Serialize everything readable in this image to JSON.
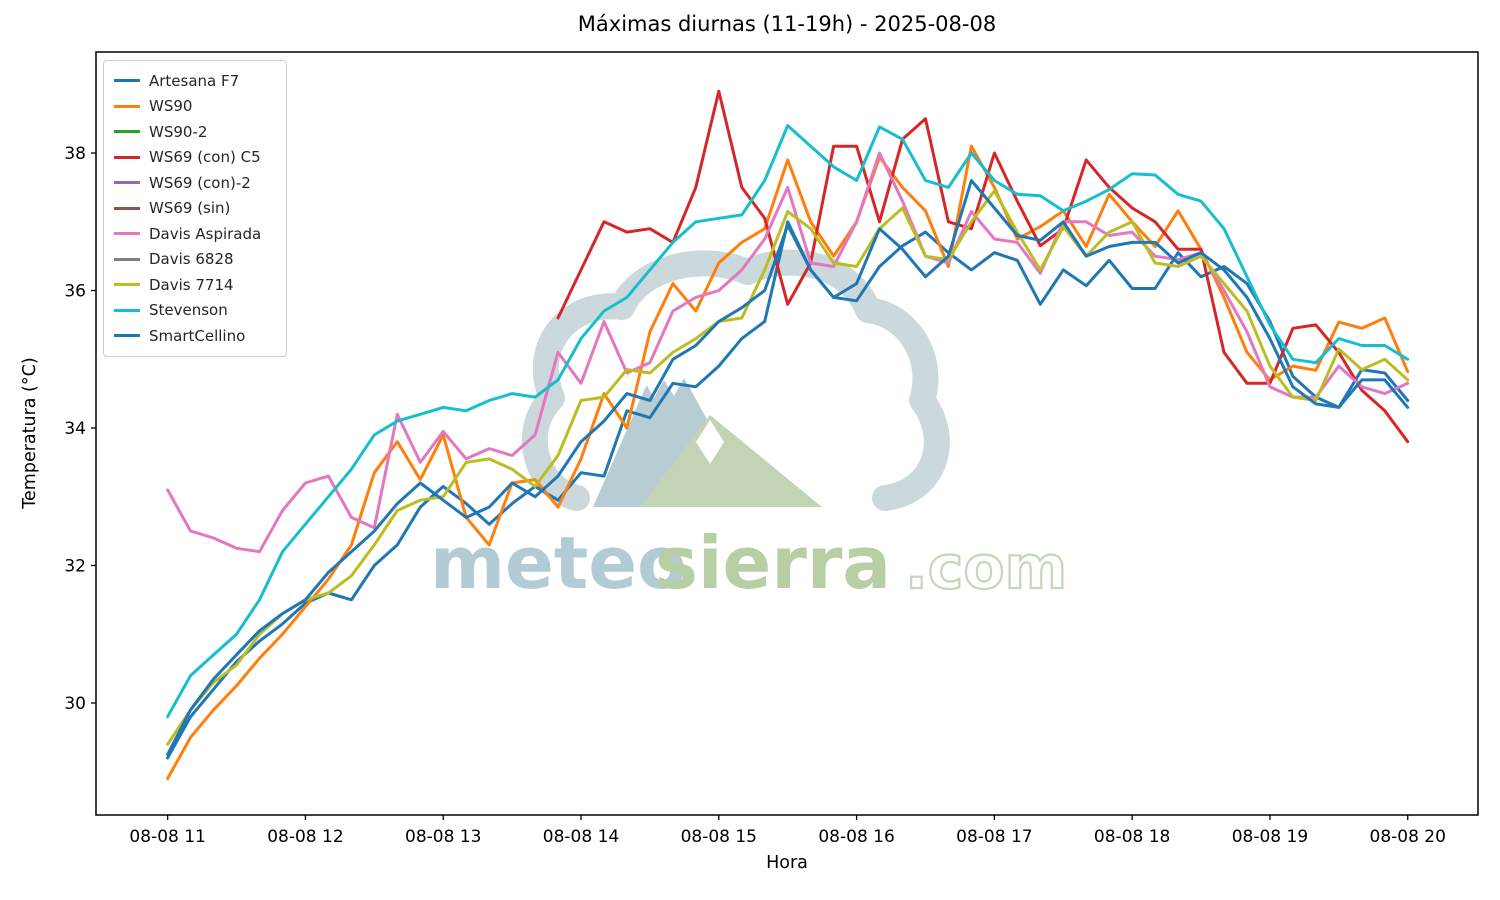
{
  "title": "Máximas diurnas (11-19h) - 2025-08-08",
  "axes": {
    "x_label": "Hora",
    "y_label": "Temperatura (°C)",
    "x_tick_labels": [
      "08-08 11",
      "08-08 12",
      "08-08 13",
      "08-08 14",
      "08-08 15",
      "08-08 16",
      "08-08 17",
      "08-08 18",
      "08-08 19",
      "08-08 20"
    ],
    "x_tick_hours": [
      11,
      12,
      13,
      14,
      15,
      16,
      17,
      18,
      19,
      20
    ],
    "y_tick_labels": [
      "30",
      "32",
      "34",
      "36",
      "38"
    ],
    "y_tick_values": [
      30,
      32,
      34,
      36,
      38
    ]
  },
  "watermark": {
    "text_meteo": "meteo",
    "text_sierra": "sierra",
    "text_com": ".com",
    "color_meteo": "#b3cbd5",
    "color_sierra": "#b8cfa6",
    "color_com": "#c3d6b8",
    "color_cloud": "#ccd9dc",
    "color_mountain_left": "#b7ccd3",
    "color_mountain_right": "#c3d4b4"
  },
  "chart_data": {
    "type": "line",
    "title": "Máximas diurnas (11-19h) - 2025-08-08",
    "xlabel": "Hora",
    "ylabel": "Temperatura (°C)",
    "xlim_hours": [
      10.48,
      20.51
    ],
    "ylim": [
      28.37,
      39.47
    ],
    "grid": false,
    "legend_position": "upper left",
    "x_start_hour": 11.0,
    "x_step_minutes": 10,
    "series": [
      {
        "name": "Artesana F7",
        "color": "#1f77b4",
        "start_hour": 11.0,
        "step_minutes": 10,
        "values": [
          29.2,
          29.8,
          30.2,
          30.6,
          30.9,
          31.15,
          31.45,
          31.6,
          31.5,
          32.0,
          32.3,
          32.85,
          33.15,
          32.9,
          32.6,
          32.9,
          33.15,
          32.95,
          33.35,
          33.3,
          34.25,
          34.15,
          34.65,
          34.6,
          34.9,
          35.3,
          35.55,
          37.0,
          36.3,
          35.9,
          35.85,
          36.35,
          36.65,
          36.85,
          36.55,
          36.3,
          36.55,
          36.44,
          35.8,
          36.3,
          36.07,
          36.44,
          36.03,
          36.03,
          36.55,
          36.2,
          36.35,
          36.1,
          35.55,
          34.75,
          34.45,
          34.3,
          34.85,
          34.8,
          34.4
        ]
      },
      {
        "name": "WS90",
        "color": "#ff7f0e",
        "start_hour": 11.0,
        "step_minutes": 10,
        "values": [
          28.9,
          29.5,
          29.9,
          30.25,
          30.65,
          31.0,
          31.4,
          31.8,
          32.3,
          33.35,
          33.8,
          33.25,
          33.9,
          32.7,
          32.3,
          33.2,
          33.25,
          32.85,
          33.55,
          34.5,
          34.0,
          35.4,
          36.1,
          35.7,
          36.4,
          36.7,
          36.9,
          37.9,
          37.0,
          36.5,
          37.0,
          37.94,
          37.5,
          37.16,
          36.35,
          38.1,
          37.5,
          36.75,
          36.93,
          37.16,
          36.64,
          37.4,
          37.0,
          36.64,
          37.16,
          36.6,
          35.9,
          35.1,
          34.7,
          34.9,
          34.84,
          35.54,
          35.45,
          35.6,
          34.82
        ]
      },
      {
        "name": "WS90-2",
        "color": "#2ca02c",
        "start_hour": 11.0,
        "step_minutes": 10,
        "values": []
      },
      {
        "name": "WS69 (con) C5",
        "color": "#d62728",
        "start_hour": 13.8333,
        "step_minutes": 10,
        "values": [
          35.6,
          36.3,
          37.0,
          36.85,
          36.9,
          36.7,
          37.5,
          38.9,
          37.5,
          37.05,
          35.8,
          36.4,
          38.1,
          38.1,
          37.0,
          38.2,
          38.5,
          37.0,
          36.9,
          38.0,
          37.3,
          36.65,
          36.9,
          37.9,
          37.5,
          37.2,
          37.0,
          36.6,
          36.6,
          35.1,
          34.65,
          34.65,
          35.45,
          35.5,
          35.1,
          34.55,
          34.25,
          33.8
        ]
      },
      {
        "name": "WS69 (con)-2",
        "color": "#9467bd",
        "start_hour": 11.0,
        "step_minutes": 10,
        "values": []
      },
      {
        "name": "WS69 (sin)",
        "color": "#8c564b",
        "start_hour": 11.0,
        "step_minutes": 10,
        "values": []
      },
      {
        "name": "Davis Aspirada",
        "color": "#e377c2",
        "start_hour": 11.0,
        "step_minutes": 10,
        "values": [
          33.1,
          32.5,
          32.4,
          32.25,
          32.2,
          32.8,
          33.2,
          33.3,
          32.7,
          32.55,
          34.2,
          33.5,
          33.95,
          33.55,
          33.7,
          33.6,
          33.9,
          35.1,
          34.65,
          35.55,
          34.8,
          34.95,
          35.7,
          35.9,
          36.0,
          36.3,
          36.75,
          37.5,
          36.4,
          36.35,
          37.0,
          38.0,
          37.3,
          36.5,
          36.4,
          37.15,
          36.75,
          36.7,
          36.25,
          37.0,
          37.0,
          36.8,
          36.85,
          36.5,
          36.45,
          36.55,
          36.0,
          35.4,
          34.6,
          34.45,
          34.45,
          34.9,
          34.6,
          34.5,
          34.65
        ]
      },
      {
        "name": "Davis 6828",
        "color": "#7f7f7f",
        "start_hour": 11.0,
        "step_minutes": 10,
        "values": []
      },
      {
        "name": "Davis 7714",
        "color": "#bcbd22",
        "start_hour": 11.0,
        "step_minutes": 10,
        "values": [
          29.4,
          29.9,
          30.3,
          30.55,
          31.0,
          31.3,
          31.5,
          31.6,
          31.85,
          32.3,
          32.8,
          32.95,
          33.0,
          33.5,
          33.55,
          33.4,
          33.15,
          33.6,
          34.4,
          34.45,
          34.85,
          34.8,
          35.1,
          35.3,
          35.55,
          35.6,
          36.3,
          37.15,
          36.9,
          36.4,
          36.35,
          36.9,
          37.2,
          36.5,
          36.45,
          37.0,
          37.45,
          36.85,
          36.3,
          36.93,
          36.5,
          36.85,
          37.0,
          36.4,
          36.35,
          36.5,
          36.1,
          35.7,
          34.9,
          34.45,
          34.4,
          35.15,
          34.85,
          35.0,
          34.7
        ]
      },
      {
        "name": "Stevenson",
        "color": "#17becf",
        "start_hour": 11.0,
        "step_minutes": 10,
        "values": [
          29.8,
          30.4,
          30.7,
          31.0,
          31.5,
          32.2,
          32.6,
          33.0,
          33.4,
          33.9,
          34.1,
          34.2,
          34.3,
          34.25,
          34.4,
          34.5,
          34.45,
          34.7,
          35.3,
          35.7,
          35.9,
          36.3,
          36.7,
          37.0,
          37.05,
          37.1,
          37.6,
          38.4,
          38.1,
          37.8,
          37.6,
          38.38,
          38.2,
          37.6,
          37.5,
          38.0,
          37.6,
          37.4,
          37.38,
          37.16,
          37.3,
          37.47,
          37.7,
          37.68,
          37.4,
          37.3,
          36.9,
          36.2,
          35.5,
          35.0,
          34.95,
          35.3,
          35.2,
          35.2,
          35.0
        ]
      },
      {
        "name": "SmartCellino",
        "color": "#1f77b4",
        "start_hour": 11.0,
        "step_minutes": 10,
        "values": [
          29.25,
          29.9,
          30.35,
          30.7,
          31.05,
          31.3,
          31.5,
          31.9,
          32.2,
          32.5,
          32.9,
          33.2,
          32.95,
          32.7,
          32.85,
          33.2,
          33.0,
          33.3,
          33.8,
          34.1,
          34.5,
          34.4,
          35.0,
          35.2,
          35.55,
          35.75,
          36.0,
          36.95,
          36.3,
          35.9,
          36.1,
          36.9,
          36.6,
          36.2,
          36.5,
          37.6,
          37.2,
          36.8,
          36.73,
          37.0,
          36.5,
          36.64,
          36.7,
          36.7,
          36.4,
          36.55,
          36.3,
          35.9,
          35.3,
          34.6,
          34.35,
          34.3,
          34.7,
          34.7,
          34.3
        ]
      }
    ]
  }
}
